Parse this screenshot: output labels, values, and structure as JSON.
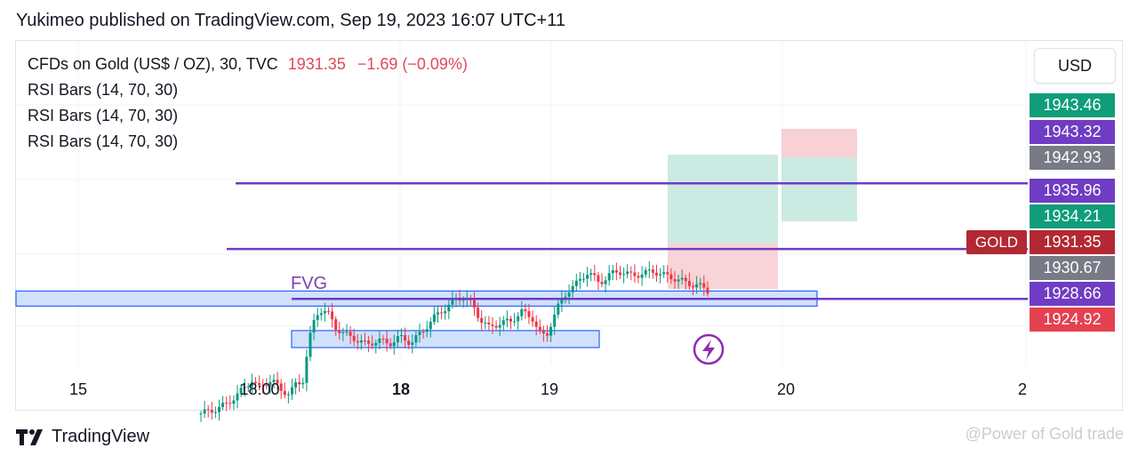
{
  "attribution": "Yukimeo published on TradingView.com, Sep 19, 2023 16:07 UTC+11",
  "legend": {
    "symbol": "CFDs on Gold (US$ / OZ), 30, TVC",
    "price": "1931.35",
    "change": "−1.69 (−0.09%)",
    "indicators": [
      "RSI Bars (14, 70, 30)",
      "RSI Bars (14, 70, 30)",
      "RSI Bars (14, 70, 30)"
    ]
  },
  "currency": "USD",
  "symbol_tag": "GOLD",
  "price_labels": [
    {
      "text": "1943.46",
      "color": "#0f9d7a"
    },
    {
      "text": "1943.32",
      "color": "#6f3cc3"
    },
    {
      "text": "1942.93",
      "color": "#787b86"
    },
    {
      "text": "1935.96",
      "color": "#6f3cc3"
    },
    {
      "text": "1934.21",
      "color": "#0f9d7a"
    },
    {
      "text": "1931.35",
      "color": "#b22833"
    },
    {
      "text": "1930.67",
      "color": "#787b86"
    },
    {
      "text": "1928.66",
      "color": "#6f3cc3"
    },
    {
      "text": "1924.92",
      "color": "#e5404f"
    }
  ],
  "time_axis": {
    "ticks": [
      "15",
      "18:00",
      "18",
      "19",
      "20",
      "2"
    ],
    "bold_tick": "18"
  },
  "annotation_fvg": "FVG",
  "branding": "TradingView",
  "watermark": "@Power of Gold trade",
  "colors": {
    "up": "#089981",
    "down": "#f23645",
    "level_line": "#6f3cc3",
    "zone_fill": "#c9dcfa",
    "zone_stroke": "#2962ff"
  },
  "chart_data": {
    "type": "candlestick",
    "title": "CFDs on Gold (US$ / OZ), 30, TVC",
    "ylim": [
      1917,
      1950
    ],
    "close_path": [
      [
        0,
        1918.5
      ],
      [
        12,
        1918.9
      ],
      [
        22,
        1919.4
      ],
      [
        32,
        1920.4
      ],
      [
        40,
        1921.3
      ],
      [
        46,
        1922.1
      ],
      [
        52,
        1921.1
      ],
      [
        58,
        1921.7
      ],
      [
        64,
        1922.1
      ],
      [
        72,
        1921.0
      ],
      [
        80,
        1920.6
      ],
      [
        86,
        1921.6
      ],
      [
        92,
        1921.9
      ],
      [
        98,
        1926.4
      ],
      [
        104,
        1929.0
      ],
      [
        110,
        1929.6
      ],
      [
        116,
        1928.9
      ],
      [
        122,
        1927.6
      ],
      [
        130,
        1926.9
      ],
      [
        140,
        1926.4
      ],
      [
        150,
        1925.8
      ],
      [
        160,
        1926.3
      ],
      [
        170,
        1925.9
      ],
      [
        180,
        1926.6
      ],
      [
        190,
        1926.0
      ],
      [
        200,
        1927.2
      ],
      [
        210,
        1928.6
      ],
      [
        220,
        1929.6
      ],
      [
        230,
        1930.6
      ],
      [
        238,
        1930.9
      ],
      [
        246,
        1929.9
      ],
      [
        252,
        1928.6
      ],
      [
        260,
        1927.6
      ],
      [
        270,
        1928.1
      ],
      [
        280,
        1928.3
      ],
      [
        290,
        1929.3
      ],
      [
        300,
        1928.6
      ],
      [
        306,
        1927.0
      ],
      [
        312,
        1926.6
      ],
      [
        318,
        1928.6
      ],
      [
        324,
        1930.1
      ],
      [
        332,
        1931.6
      ],
      [
        340,
        1932.3
      ],
      [
        350,
        1933.6
      ],
      [
        360,
        1932.3
      ],
      [
        370,
        1933.3
      ],
      [
        380,
        1933.6
      ],
      [
        390,
        1933.1
      ],
      [
        400,
        1933.4
      ],
      [
        410,
        1933.6
      ],
      [
        420,
        1933.1
      ],
      [
        430,
        1932.8
      ],
      [
        440,
        1932.3
      ],
      [
        450,
        1932.1
      ],
      [
        458,
        1931.5
      ]
    ],
    "levels": [
      1942.93,
      1935.96,
      1930.67
    ],
    "fvg_zone": [
      1925.5,
      1927.3
    ],
    "horizontal_zone": [
      1929.9,
      1931.5
    ]
  }
}
